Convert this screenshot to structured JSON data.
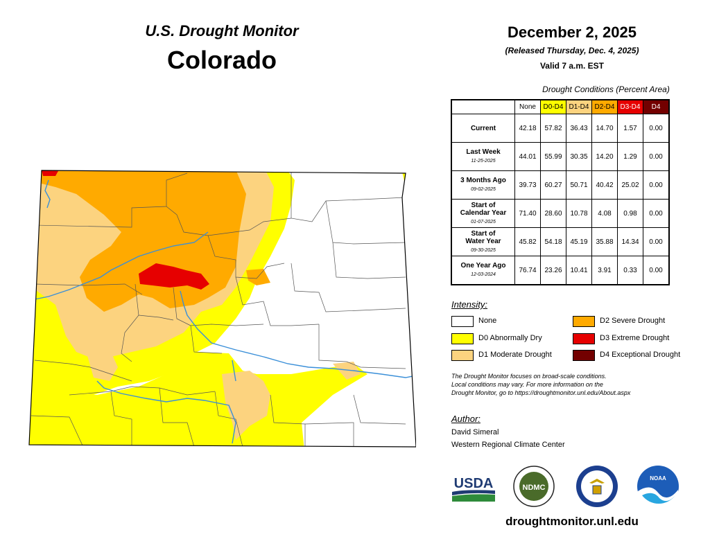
{
  "header": {
    "product_title": "U.S. Drought Monitor",
    "state": "Colorado",
    "date": "December 2, 2025",
    "release_note": "(Released Thursday, Dec. 4, 2025)",
    "valid_time": "Valid 7 a.m. EST"
  },
  "table": {
    "caption": "Drought Conditions (Percent Area)",
    "columns": [
      "None",
      "D0-D4",
      "D1-D4",
      "D2-D4",
      "D3-D4",
      "D4"
    ],
    "column_colors": [
      "#ffffff",
      "#ffff00",
      "#fcd37f",
      "#ffaa00",
      "#e60000",
      "#730000"
    ],
    "rows": [
      {
        "label": "Current",
        "label2": "",
        "date": "",
        "values": [
          "42.18",
          "57.82",
          "36.43",
          "14.70",
          "1.57",
          "0.00"
        ]
      },
      {
        "label": "Last Week",
        "label2": "",
        "date": "11-25-2025",
        "values": [
          "44.01",
          "55.99",
          "30.35",
          "14.20",
          "1.29",
          "0.00"
        ]
      },
      {
        "label": "3 Months Ago",
        "label2": "",
        "date": "09-02-2025",
        "values": [
          "39.73",
          "60.27",
          "50.71",
          "40.42",
          "25.02",
          "0.00"
        ]
      },
      {
        "label": "Start of",
        "label2": "Calendar Year",
        "date": "01-07-2025",
        "values": [
          "71.40",
          "28.60",
          "10.78",
          "4.08",
          "0.98",
          "0.00"
        ]
      },
      {
        "label": "Start of",
        "label2": "Water Year",
        "date": "09-30-2025",
        "values": [
          "45.82",
          "54.18",
          "45.19",
          "35.88",
          "14.34",
          "0.00"
        ]
      },
      {
        "label": "One Year Ago",
        "label2": "",
        "date": "12-03-2024",
        "values": [
          "76.74",
          "23.26",
          "10.41",
          "3.91",
          "0.33",
          "0.00"
        ]
      }
    ]
  },
  "legend": {
    "title": "Intensity:",
    "items": [
      {
        "label": "None",
        "color": "#ffffff"
      },
      {
        "label": "D0 Abnormally Dry",
        "color": "#ffff00"
      },
      {
        "label": "D1 Moderate Drought",
        "color": "#fcd37f"
      },
      {
        "label": "D2 Severe Drought",
        "color": "#ffaa00"
      },
      {
        "label": "D3 Extreme Drought",
        "color": "#e60000"
      },
      {
        "label": "D4 Exceptional Drought",
        "color": "#730000"
      }
    ]
  },
  "disclaimer": {
    "line1": "The Drought Monitor focuses on broad-scale conditions.",
    "line2": "Local conditions may vary. For more information on the",
    "line3": "Drought Monitor, go to https://droughtmonitor.unl.edu/About.aspx"
  },
  "author": {
    "title": "Author:",
    "name": "David Simeral",
    "org": "Western Regional Climate Center"
  },
  "logos": {
    "usda": "USDA",
    "ndmc": "NDMC",
    "noaa": "NOAA",
    "doc_icon": "eagle-seal-icon"
  },
  "website": "droughtmonitor.unl.edu"
}
